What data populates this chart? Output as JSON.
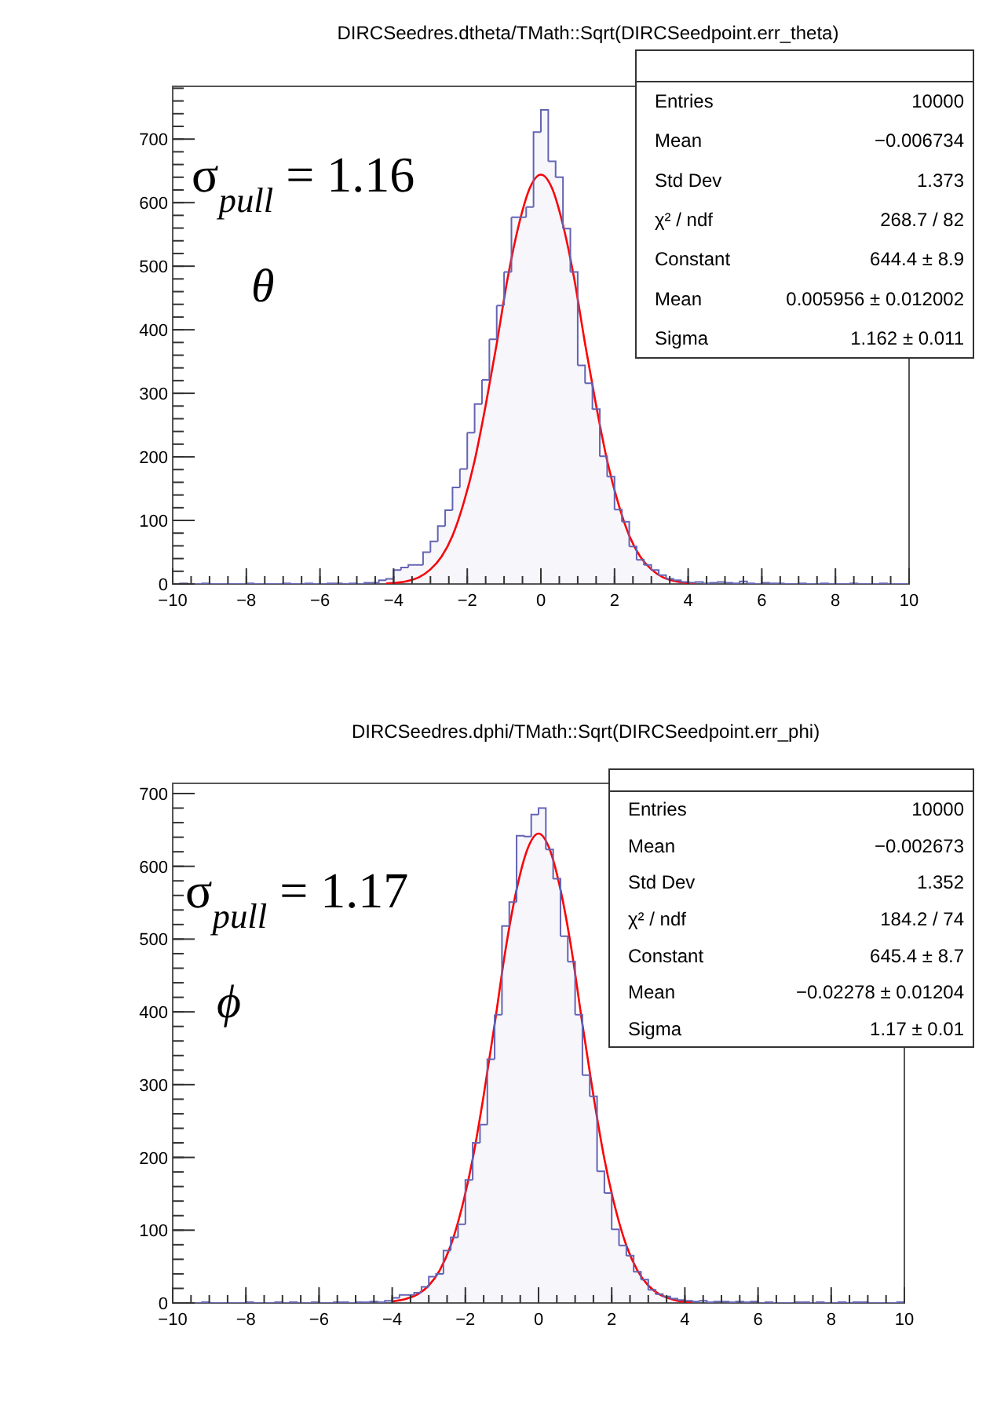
{
  "chart_data": [
    {
      "type": "histogram",
      "title": "DIRCSeedres.dtheta/TMath::Sqrt(DIRCSeedpoint.err_theta)",
      "series": [
        {
          "color": "#6464b4",
          "bins": [
            -10,
            -9.8,
            -9.6,
            -9.4,
            -9.2,
            -9,
            -8.8,
            -8.6,
            -8.4,
            -8.2,
            -8,
            -7.8,
            -7.6,
            -7.4,
            -7.2,
            -7,
            -6.8,
            -6.6,
            -6.4,
            -6.2,
            -6,
            -5.8,
            -5.6,
            -5.4,
            -5.2,
            -5,
            -4.8,
            -4.6,
            -4.4,
            -4.2,
            -4,
            -3.8,
            -3.6,
            -3.4,
            -3.2,
            -3,
            -2.8,
            -2.6,
            -2.4,
            -2.2,
            -2,
            -1.8,
            -1.6,
            -1.4,
            -1.2,
            -1,
            -0.8,
            -0.6,
            -0.4,
            -0.2,
            0,
            0.2,
            0.4,
            0.6,
            0.8,
            1,
            1.2,
            1.4,
            1.6,
            1.8,
            2,
            2.2,
            2.4,
            2.6,
            2.8,
            3,
            3.2,
            3.4,
            3.6,
            3.8,
            4,
            4.2,
            4.4,
            4.6,
            4.8,
            5,
            5.2,
            5.4,
            5.6,
            5.8,
            6,
            6.2,
            6.4,
            6.6,
            6.8,
            7,
            7.2,
            7.4,
            7.6,
            7.8,
            8,
            8.2,
            8.4,
            8.6,
            8.8,
            9,
            9.2,
            9.4,
            9.6,
            9.8,
            10
          ],
          "values": [
            0,
            1,
            0,
            0,
            1,
            0,
            0,
            0,
            0,
            0,
            1,
            0,
            0,
            0,
            0,
            1,
            0,
            0,
            1,
            0,
            0,
            1,
            1,
            0,
            1,
            0,
            2,
            2,
            6,
            8,
            22,
            26,
            30,
            30,
            50,
            67,
            91,
            116,
            152,
            181,
            238,
            283,
            321,
            385,
            438,
            491,
            577,
            577,
            593,
            711,
            746,
            665,
            640,
            559,
            491,
            344,
            316,
            275,
            201,
            169,
            117,
            98,
            59,
            38,
            30,
            22,
            14,
            8,
            6,
            3,
            2,
            3,
            1,
            2,
            3,
            2,
            1,
            4,
            1,
            0,
            2,
            1,
            1,
            0,
            0,
            1,
            0,
            0,
            1,
            0,
            0,
            0,
            1,
            0,
            0,
            0,
            1,
            0,
            0,
            0
          ]
        },
        {
          "type": "line",
          "color": "#ff0000",
          "x": [
            -4.2,
            -3.9,
            -3.6,
            -3.3,
            -3,
            -2.7,
            -2.4,
            -2.1,
            -1.8,
            -1.5,
            -1.2,
            -0.9,
            -0.6,
            -0.3,
            0,
            0.3,
            0.6,
            0.9,
            1.2,
            1.5,
            1.8,
            2.1,
            2.4,
            2.7,
            3,
            3.3,
            3.6,
            3.9,
            4.2
          ],
          "values": [
            1,
            2,
            5,
            11,
            23,
            43,
            76,
            127,
            194,
            281,
            378,
            482,
            565,
            623,
            644,
            623,
            565,
            482,
            378,
            281,
            194,
            127,
            76,
            43,
            23,
            11,
            5,
            2,
            1
          ]
        }
      ],
      "xlim": [
        -10,
        10
      ],
      "xticks": [
        -10,
        -8,
        -6,
        -4,
        -2,
        0,
        2,
        4,
        6,
        8,
        10
      ],
      "ylim": [
        0,
        783
      ],
      "yticks": [
        0,
        100,
        200,
        300,
        400,
        500,
        600,
        700
      ],
      "annotations": [
        "σ$_{pull}$ = 1.16",
        "θ",
        "Entries",
        "10000",
        "Mean",
        "−0.006734",
        "Std Dev",
        "1.373",
        "χ² / ndf",
        "268.7 / 82",
        "Constant",
        "644.4 ± 8.9",
        "Mean",
        "0.005956 ± 0.012002",
        "Sigma",
        "1.162 ± 0.011"
      ]
    },
    {
      "type": "histogram",
      "title": "DIRCSeedres.dphi/TMath::Sqrt(DIRCSeedpoint.err_phi)",
      "series": [
        {
          "color": "#6464b4",
          "bins": [
            -10,
            -9.8,
            -9.6,
            -9.4,
            -9.2,
            -9,
            -8.8,
            -8.6,
            -8.4,
            -8.2,
            -8,
            -7.8,
            -7.6,
            -7.4,
            -7.2,
            -7,
            -6.8,
            -6.6,
            -6.4,
            -6.2,
            -6,
            -5.8,
            -5.6,
            -5.4,
            -5.2,
            -5,
            -4.8,
            -4.6,
            -4.4,
            -4.2,
            -4,
            -3.8,
            -3.6,
            -3.4,
            -3.2,
            -3,
            -2.8,
            -2.6,
            -2.4,
            -2.2,
            -2,
            -1.8,
            -1.6,
            -1.4,
            -1.2,
            -1,
            -0.8,
            -0.6,
            -0.4,
            -0.2,
            0,
            0.2,
            0.4,
            0.6,
            0.8,
            1,
            1.2,
            1.4,
            1.6,
            1.8,
            2,
            2.2,
            2.4,
            2.6,
            2.8,
            3,
            3.2,
            3.4,
            3.6,
            3.8,
            4,
            4.2,
            4.4,
            4.6,
            4.8,
            5,
            5.2,
            5.4,
            5.6,
            5.8,
            6,
            6.2,
            6.4,
            6.6,
            6.8,
            7,
            7.2,
            7.4,
            7.6,
            7.8,
            8,
            8.2,
            8.4,
            8.6,
            8.8,
            9,
            9.2,
            9.4,
            9.6,
            9.8,
            10
          ],
          "values": [
            0,
            0,
            0,
            0,
            1,
            0,
            0,
            0,
            0,
            0,
            1,
            0,
            0,
            0,
            1,
            0,
            1,
            0,
            0,
            1,
            0,
            0,
            1,
            1,
            0,
            1,
            1,
            2,
            1,
            3,
            7,
            11,
            11,
            14,
            22,
            36,
            40,
            72,
            90,
            108,
            169,
            220,
            245,
            335,
            396,
            518,
            551,
            642,
            641,
            671,
            680,
            623,
            583,
            504,
            469,
            396,
            313,
            284,
            181,
            151,
            101,
            79,
            65,
            43,
            32,
            18,
            12,
            9,
            6,
            4,
            3,
            2,
            3,
            1,
            2,
            2,
            1,
            2,
            1,
            2,
            0,
            1,
            0,
            0,
            0,
            1,
            1,
            0,
            1,
            0,
            0,
            1,
            0,
            1,
            1,
            0,
            0,
            0,
            0,
            1
          ]
        },
        {
          "type": "line",
          "color": "#ff0000",
          "x": [
            -4,
            -3.6,
            -3.3,
            -3,
            -2.7,
            -2.4,
            -2.1,
            -1.8,
            -1.5,
            -1.2,
            -0.9,
            -0.6,
            -0.3,
            0,
            0.3,
            0.6,
            0.9,
            1.2,
            1.5,
            1.8,
            2.1,
            2.4,
            2.7,
            3,
            3.3,
            3.6,
            3.9,
            4.2
          ],
          "values": [
            2,
            6,
            12,
            24,
            45,
            79,
            130,
            198,
            285,
            383,
            486,
            568,
            624,
            645,
            624,
            568,
            486,
            383,
            285,
            198,
            130,
            79,
            45,
            24,
            12,
            6,
            2,
            1
          ]
        }
      ],
      "xlim": [
        -10,
        10
      ],
      "xticks": [
        -10,
        -8,
        -6,
        -4,
        -2,
        0,
        2,
        4,
        6,
        8,
        10
      ],
      "ylim": [
        0,
        714
      ],
      "yticks": [
        0,
        100,
        200,
        300,
        400,
        500,
        600,
        700
      ],
      "annotations": [
        "σ$_{pull}$ = 1.17",
        "ϕ",
        "Entries",
        "10000",
        "Mean",
        "−0.002673",
        "Std Dev",
        "1.352",
        "χ² / ndf",
        "184.2 / 74",
        "Constant",
        "645.4 ± 8.7",
        "Mean",
        "−0.02278 ± 0.01204",
        "Sigma",
        "1.17 ± 0.01"
      ]
    }
  ]
}
